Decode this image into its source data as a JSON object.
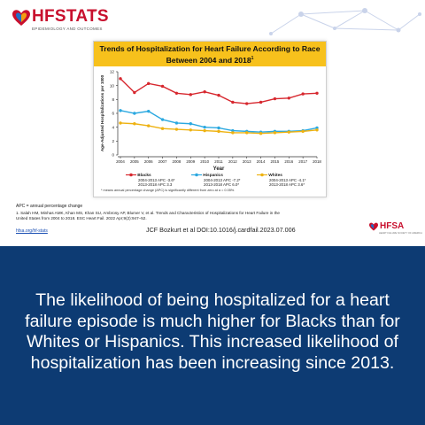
{
  "brand": {
    "name": "HFSTATS",
    "tm": "TM",
    "subtitle": "EPIDEMIOLOGY AND OUTCOMES"
  },
  "chart_data": {
    "type": "line",
    "title_line1": "Trends of Hospitalization for Heart Failure According to Race",
    "title_line2": "Between 2004 and 2018",
    "title_sup": "1",
    "xlabel": "Year",
    "ylabel": "Age-Adjusted Hospitalizations per 1000",
    "x": [
      2004,
      2005,
      2006,
      2007,
      2008,
      2009,
      2010,
      2011,
      2012,
      2013,
      2014,
      2015,
      2016,
      2017,
      2018
    ],
    "ylim": [
      0,
      12
    ],
    "yticks": [
      0,
      2,
      4,
      6,
      8,
      10,
      12
    ],
    "series": [
      {
        "name": "Blacks",
        "color": "#d7282f",
        "values": [
          11.0,
          9.0,
          10.3,
          9.9,
          8.9,
          8.7,
          9.1,
          8.6,
          7.6,
          7.4,
          7.6,
          8.1,
          8.2,
          8.8,
          8.9
        ],
        "apc1": "2004-2013 APC -3.6*",
        "apc2": "2013-2018 APC 3.3"
      },
      {
        "name": "Hispanics",
        "color": "#2aa8e0",
        "values": [
          6.4,
          6.0,
          6.3,
          5.1,
          4.6,
          4.5,
          4.0,
          3.9,
          3.5,
          3.4,
          3.3,
          3.4,
          3.4,
          3.5,
          3.9
        ],
        "apc1": "2004-2013 APC -7.2*",
        "apc2": "2013-2018 APC 6.0*"
      },
      {
        "name": "Whites",
        "color": "#eeb211",
        "values": [
          4.6,
          4.5,
          4.2,
          3.8,
          3.7,
          3.6,
          3.5,
          3.4,
          3.2,
          3.2,
          3.1,
          3.2,
          3.3,
          3.4,
          3.6
        ],
        "apc1": "2004-2013 APC -4.1*",
        "apc2": "2013-2018 APC 3.6*"
      }
    ],
    "footnote": "* means annual percentage change (APC) is significantly different from zero at α = 0.05%."
  },
  "notes": {
    "apc": "APC = annual percentage change",
    "reference": "1. Salah HM, Minhas AMK, Khan MS, Khan SU, Ambrosy AP, Blumer V, et al. Trends and Characteristics of Hospitalizations for Heart Failure in the United States from 2004 to 2018. ESC Heart Fail. 2022 Apr;9(2):947–52.",
    "url": "hfsa.org/hf-stats",
    "doi": "JCF Bozkurt et al DOI:10.1016/j.cardfail.2023.07.006"
  },
  "hfsa": {
    "name": "HFSA",
    "subtitle": "HEART FAILURE SOCIETY OF AMERICA"
  },
  "message": "The likelihood of being hospitalized for a heart failure episode is much higher for Blacks than for Whites or Hispanics. This increased likelihood of hospitalization has been increasing since 2013.",
  "colors": {
    "brand_red": "#c8102e",
    "banner_navy": "#0d3b73",
    "title_yellow": "#f7c11c"
  },
  "icons": [
    "hfstats-logo-icon",
    "network-graphic-icon",
    "hfsa-heart-logo-icon"
  ]
}
